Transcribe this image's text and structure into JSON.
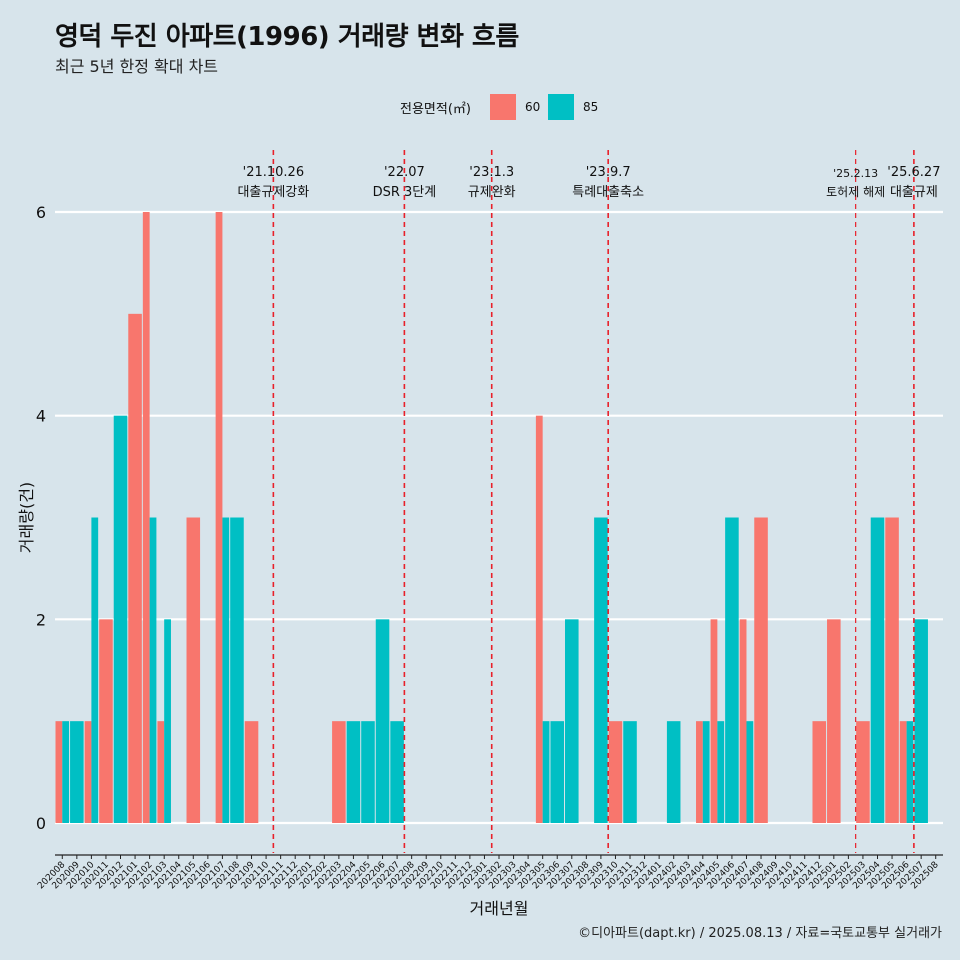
{
  "title": "영덕 두진 아파트(1996) 거래량 변화 흐름",
  "subtitle": "최근 5년 한정 확대 차트",
  "caption": "©디아파트(dapt.kr) / 2025.08.13 / 자료=국토교통부 실거래가",
  "legend": {
    "title": "전용면적(㎡)",
    "items": [
      {
        "label": "60",
        "color": "#f8766d"
      },
      {
        "label": "85",
        "color": "#00bfc4"
      }
    ]
  },
  "chart_data": {
    "type": "bar",
    "xlabel": "거래년월",
    "ylabel": "거래량(건)",
    "ylim": [
      0,
      6
    ],
    "yticks": [
      0,
      2,
      4,
      6
    ],
    "categories": [
      "202008",
      "202009",
      "202010",
      "202011",
      "202012",
      "202101",
      "202102",
      "202103",
      "202104",
      "202105",
      "202106",
      "202107",
      "202108",
      "202109",
      "202110",
      "202111",
      "202112",
      "202201",
      "202202",
      "202203",
      "202204",
      "202205",
      "202206",
      "202207",
      "202208",
      "202209",
      "202210",
      "202211",
      "202212",
      "202301",
      "202302",
      "202303",
      "202304",
      "202305",
      "202306",
      "202307",
      "202308",
      "202309",
      "202310",
      "202311",
      "202312",
      "202401",
      "202402",
      "202403",
      "202404",
      "202405",
      "202406",
      "202407",
      "202408",
      "202409",
      "202410",
      "202411",
      "202412",
      "202501",
      "202502",
      "202503",
      "202504",
      "202505",
      "202506",
      "202507",
      "202508"
    ],
    "series": [
      {
        "name": "60",
        "color": "#f8766d",
        "values": [
          1,
          0,
          1,
          2,
          0,
          5,
          6,
          1,
          0,
          3,
          0,
          6,
          0,
          1,
          0,
          0,
          0,
          0,
          0,
          1,
          0,
          0,
          0,
          0,
          0,
          0,
          0,
          0,
          0,
          0,
          0,
          0,
          0,
          4,
          0,
          0,
          0,
          0,
          1,
          0,
          0,
          0,
          0,
          0,
          1,
          2,
          0,
          2,
          3,
          0,
          0,
          0,
          1,
          2,
          0,
          1,
          0,
          3,
          1,
          0,
          0
        ]
      },
      {
        "name": "85",
        "color": "#00bfc4",
        "values": [
          1,
          1,
          3,
          0,
          4,
          0,
          3,
          2,
          0,
          0,
          0,
          3,
          3,
          0,
          0,
          0,
          0,
          0,
          0,
          0,
          1,
          1,
          2,
          1,
          0,
          0,
          0,
          0,
          0,
          0,
          0,
          0,
          0,
          1,
          1,
          2,
          0,
          3,
          0,
          1,
          0,
          0,
          1,
          0,
          1,
          1,
          3,
          1,
          0,
          0,
          0,
          0,
          0,
          0,
          0,
          0,
          3,
          0,
          1,
          2,
          0
        ]
      }
    ],
    "events": [
      {
        "date": "'21.10.26",
        "label": "대출규제강화",
        "after": "202110"
      },
      {
        "date": "'22.07",
        "label": "DSR 3단계",
        "after": "202207"
      },
      {
        "date": "'23.1.3",
        "label": "규제완화",
        "after": "202301"
      },
      {
        "date": "'23.9.7",
        "label": "특례대출축소",
        "after": "202309"
      },
      {
        "date": "'25.2.13",
        "label": "토허제 해제",
        "after": "202502",
        "small": true
      },
      {
        "date": "'25.6.27",
        "label": "대출규제",
        "after": "202506"
      }
    ]
  }
}
